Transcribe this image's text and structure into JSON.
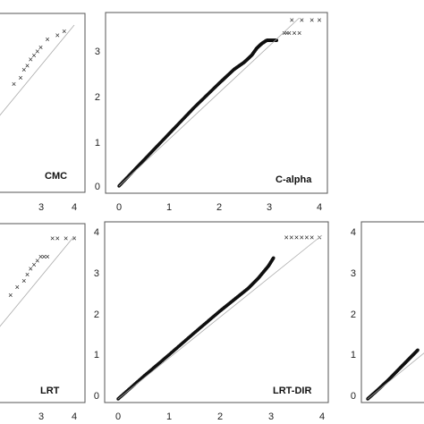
{
  "chart_data": [
    {
      "type": "scatter",
      "title": "CMC",
      "xlim": [
        0,
        4
      ],
      "ylim": [
        0,
        4
      ],
      "x_ticks": [
        "3",
        "4"
      ],
      "y_ticks": [],
      "reference_line": "y = x",
      "panel": "top-left",
      "points_description": "QQ points follow reference line then rise above it",
      "series": [
        {
          "points": [
            [
              2.2,
              2.55
            ],
            [
              2.4,
              2.7
            ],
            [
              2.5,
              2.9
            ],
            [
              2.6,
              3.0
            ],
            [
              2.7,
              3.15
            ],
            [
              2.8,
              3.25
            ],
            [
              2.9,
              3.35
            ],
            [
              3.0,
              3.45
            ],
            [
              3.2,
              3.65
            ],
            [
              3.5,
              3.75
            ],
            [
              3.7,
              3.85
            ]
          ]
        }
      ]
    },
    {
      "type": "scatter",
      "title": "C-alpha",
      "xlim": [
        0,
        4
      ],
      "ylim": [
        0,
        3.6
      ],
      "x_ticks": [
        "0",
        "1",
        "2",
        "3",
        "4"
      ],
      "y_ticks": [
        "0",
        "1",
        "2",
        "3"
      ],
      "reference_line": "y = x",
      "panel": "top-middle",
      "series": [
        {
          "dense_curve": [
            [
              0,
              0
            ],
            [
              0.5,
              0.56
            ],
            [
              1,
              1.12
            ],
            [
              1.5,
              1.68
            ],
            [
              2,
              2.2
            ],
            [
              2.3,
              2.5
            ],
            [
              2.5,
              2.65
            ],
            [
              2.65,
              2.8
            ],
            [
              2.75,
              2.95
            ],
            [
              2.85,
              3.05
            ],
            [
              2.95,
              3.12
            ],
            [
              3.05,
              3.12
            ],
            [
              3.15,
              3.12
            ]
          ],
          "extra_points": [
            [
              3.3,
              3.27
            ],
            [
              3.35,
              3.27
            ],
            [
              3.4,
              3.27
            ],
            [
              3.5,
              3.27
            ],
            [
              3.6,
              3.27
            ],
            [
              3.45,
              3.55
            ],
            [
              3.65,
              3.55
            ],
            [
              3.85,
              3.55
            ],
            [
              4.0,
              3.55
            ]
          ]
        }
      ]
    },
    {
      "type": "scatter",
      "title": "LRT",
      "xlim": [
        0,
        4
      ],
      "ylim": [
        0,
        4
      ],
      "x_ticks": [
        "3",
        "4"
      ],
      "y_ticks": [],
      "reference_line": "y = x",
      "panel": "bottom-left",
      "series": [
        {
          "points": [
            [
              2.1,
              2.55
            ],
            [
              2.3,
              2.75
            ],
            [
              2.5,
              2.9
            ],
            [
              2.6,
              3.05
            ],
            [
              2.7,
              3.2
            ],
            [
              2.8,
              3.3
            ],
            [
              2.9,
              3.4
            ],
            [
              3.0,
              3.5
            ],
            [
              3.1,
              3.5
            ],
            [
              3.2,
              3.5
            ],
            [
              3.35,
              3.95
            ],
            [
              3.5,
              3.95
            ],
            [
              3.75,
              3.95
            ],
            [
              4.0,
              3.95
            ]
          ]
        }
      ]
    },
    {
      "type": "scatter",
      "title": "LRT-DIR",
      "xlim": [
        0,
        4
      ],
      "ylim": [
        0,
        4
      ],
      "x_ticks": [
        "0",
        "1",
        "2",
        "3",
        "4"
      ],
      "y_ticks": [
        "0",
        "1",
        "2",
        "3",
        "4"
      ],
      "reference_line": "y = x",
      "panel": "bottom-middle",
      "series": [
        {
          "dense_curve": [
            [
              0,
              0
            ],
            [
              0.5,
              0.55
            ],
            [
              1,
              1.08
            ],
            [
              1.5,
              1.62
            ],
            [
              2,
              2.15
            ],
            [
              2.3,
              2.45
            ],
            [
              2.55,
              2.7
            ],
            [
              2.75,
              2.95
            ],
            [
              2.95,
              3.25
            ],
            [
              3.05,
              3.45
            ]
          ],
          "extra_points": [
            [
              3.3,
              3.95
            ],
            [
              3.4,
              3.95
            ],
            [
              3.5,
              3.95
            ],
            [
              3.6,
              3.95
            ],
            [
              3.7,
              3.95
            ],
            [
              3.8,
              3.95
            ],
            [
              3.95,
              3.95
            ]
          ]
        }
      ]
    },
    {
      "type": "scatter",
      "title": "",
      "xlim": [
        0,
        4
      ],
      "ylim": [
        0,
        4
      ],
      "x_ticks": [],
      "y_ticks": [
        "0",
        "1",
        "2",
        "3",
        "4"
      ],
      "reference_line": "y = x",
      "panel": "bottom-right",
      "series": [
        {
          "dense_curve": [
            [
              0,
              0
            ],
            [
              0.2,
              0.22
            ],
            [
              0.4,
              0.45
            ],
            [
              0.6,
              0.7
            ],
            [
              0.8,
              0.95
            ],
            [
              1.0,
              1.2
            ]
          ]
        }
      ]
    }
  ]
}
